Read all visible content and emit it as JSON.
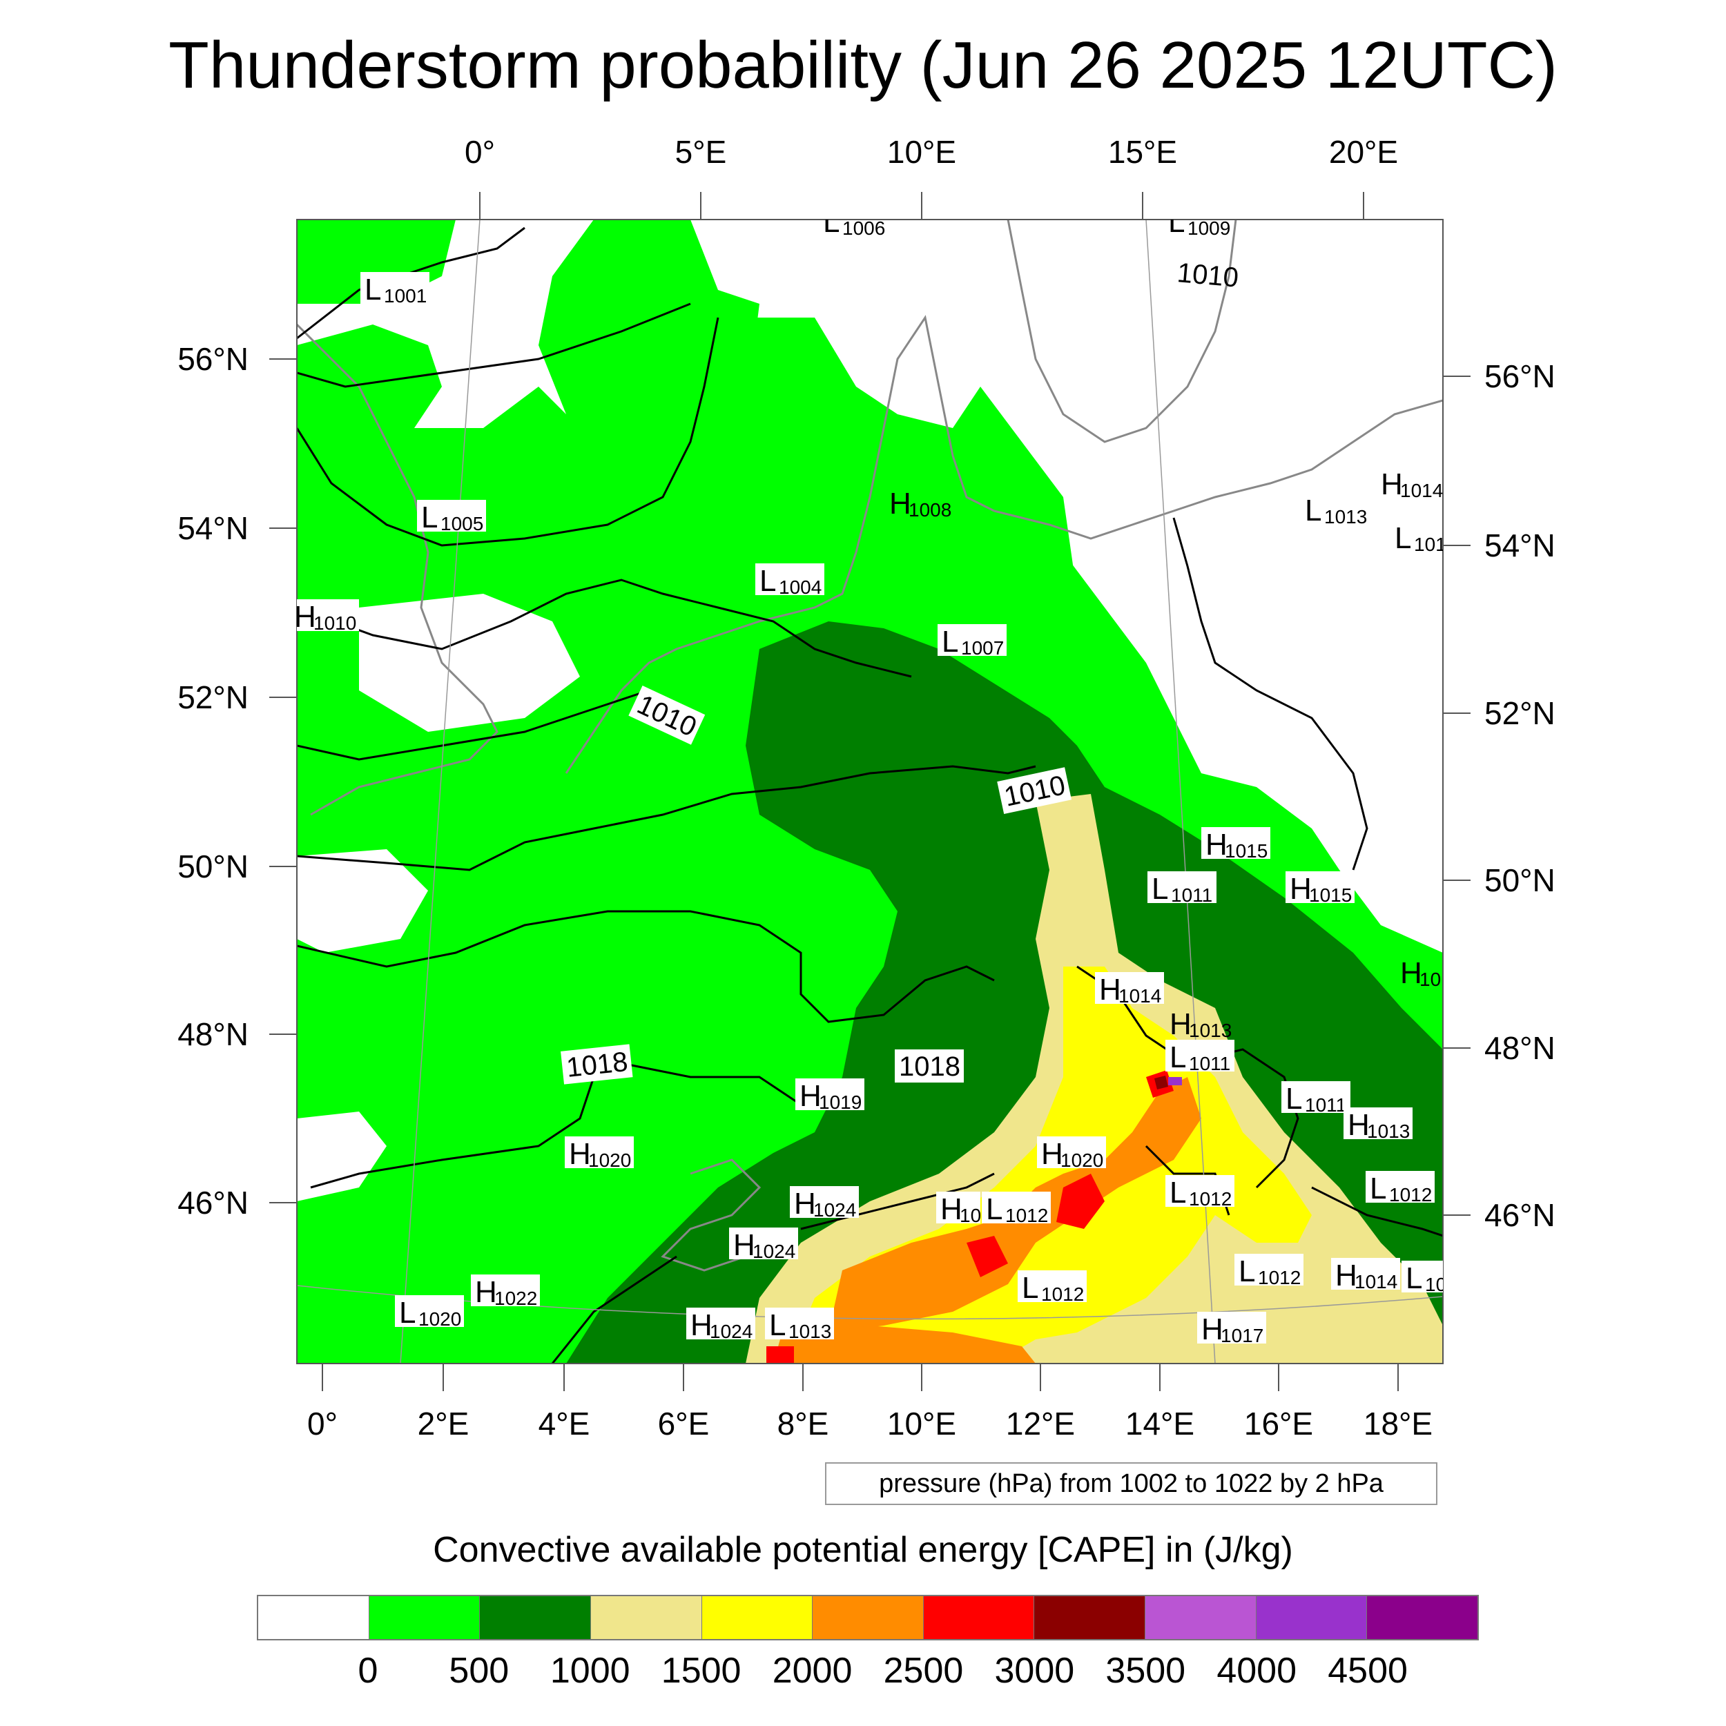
{
  "title": "Thunderstorm probability (Jun 26 2025 12UTC)",
  "top_lon_labels": [
    "0°",
    "5°E",
    "10°E",
    "15°E",
    "20°E"
  ],
  "bottom_lon_labels": [
    "0°",
    "2°E",
    "4°E",
    "6°E",
    "8°E",
    "10°E",
    "12°E",
    "14°E",
    "16°E",
    "18°E"
  ],
  "left_lat_labels": [
    "56°N",
    "54°N",
    "52°N",
    "50°N",
    "48°N",
    "46°N"
  ],
  "right_lat_labels": [
    "56°N",
    "54°N",
    "52°N",
    "50°N",
    "48°N",
    "46°N"
  ],
  "pressure_note": "pressure (hPa) from 1002 to 1022 by 2 hPa",
  "colorbar": {
    "title": "Convective available potential energy [CAPE] in (J/kg)",
    "colors": [
      "#ffffff",
      "#00ff00",
      "#007f00",
      "#f0e68c",
      "#ffff00",
      "#ff8c00",
      "#ff0000",
      "#8b0000",
      "#ba55d3",
      "#9932cc",
      "#8b008b"
    ],
    "tick_labels": [
      "0",
      "500",
      "1000",
      "1500",
      "2000",
      "2500",
      "3000",
      "3500",
      "4000",
      "4500"
    ]
  },
  "pressure_systems": [
    {
      "type": "L",
      "value": "1001"
    },
    {
      "type": "L",
      "value": "1006"
    },
    {
      "type": "L",
      "value": "1009"
    },
    {
      "type": "L",
      "value": "1005"
    },
    {
      "type": "H",
      "value": "1008"
    },
    {
      "type": "L",
      "value": "1004"
    },
    {
      "type": "H",
      "value": "1010"
    },
    {
      "type": "L",
      "value": "1007"
    },
    {
      "type": "H",
      "value": "1014"
    },
    {
      "type": "L",
      "value": "1013"
    },
    {
      "type": "L",
      "value": "101"
    },
    {
      "type": "H",
      "value": "1015"
    },
    {
      "type": "L",
      "value": "1011"
    },
    {
      "type": "H",
      "value": "1015"
    },
    {
      "type": "H",
      "value": "10"
    },
    {
      "type": "H",
      "value": "1014"
    },
    {
      "type": "H",
      "value": "1013"
    },
    {
      "type": "L",
      "value": "1011"
    },
    {
      "type": "H",
      "value": "1019"
    },
    {
      "type": "L",
      "value": "1011"
    },
    {
      "type": "H",
      "value": "1013"
    },
    {
      "type": "H",
      "value": "1020"
    },
    {
      "type": "H",
      "value": "1020"
    },
    {
      "type": "L",
      "value": "1012"
    },
    {
      "type": "L",
      "value": "1012"
    },
    {
      "type": "H",
      "value": "1024"
    },
    {
      "type": "H",
      "value": "10"
    },
    {
      "type": "L",
      "value": "1012"
    },
    {
      "type": "H",
      "value": "1024"
    },
    {
      "type": "L",
      "value": "1012"
    },
    {
      "type": "H",
      "value": "1014"
    },
    {
      "type": "L",
      "value": "10"
    },
    {
      "type": "L",
      "value": "1012"
    },
    {
      "type": "L",
      "value": "1020"
    },
    {
      "type": "H",
      "value": "1022"
    },
    {
      "type": "H",
      "value": "1024"
    },
    {
      "type": "L",
      "value": "1013"
    },
    {
      "type": "H",
      "value": "1017"
    }
  ],
  "isobar_labels": [
    "1010",
    "1010",
    "1010",
    "1018",
    "1018"
  ]
}
